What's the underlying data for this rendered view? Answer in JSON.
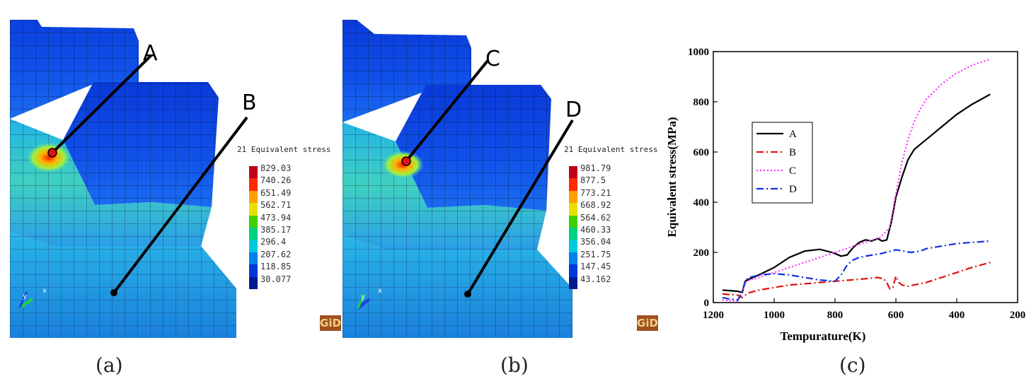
{
  "panels": [
    {
      "caption": "(a)",
      "point_labels": [
        "A",
        "B"
      ],
      "legend_title": "21 Equivalent stress",
      "scale": [
        "829.03",
        "740.26",
        "651.49",
        "562.71",
        "473.94",
        "385.17",
        "296.4",
        "207.62",
        "118.85",
        "30.077"
      ],
      "axis_labels": [
        "y",
        "x"
      ],
      "logo": "GiD"
    },
    {
      "caption": "(b)",
      "point_labels": [
        "C",
        "D"
      ],
      "legend_title": "21 Equivalent stress",
      "scale": [
        "981.79",
        "877.5",
        "773.21",
        "668.92",
        "564.62",
        "460.33",
        "356.04",
        "251.75",
        "147.45",
        "43.162"
      ],
      "axis_labels": [
        "y",
        "x"
      ],
      "logo": "GiD"
    }
  ],
  "colorbar": [
    "#c0001a",
    "#ff2a00",
    "#ffa000",
    "#e8e000",
    "#40d000",
    "#00d080",
    "#00c8e0",
    "#0080e8",
    "#0038d8",
    "#001a90"
  ],
  "chart_caption": "(c)",
  "chart_data": {
    "type": "line",
    "xlabel": "Tempurature(K)",
    "ylabel": "Equivalent stress(MPa)",
    "xlim": [
      1200,
      200
    ],
    "ylim": [
      0,
      1000
    ],
    "xticks": [
      1200,
      1000,
      800,
      600,
      400,
      200
    ],
    "yticks": [
      0,
      200,
      400,
      600,
      800,
      1000
    ],
    "legend_position": "left-middle",
    "series": [
      {
        "name": "A",
        "color": "#000000",
        "dash": "solid",
        "x": [
          1170,
          1150,
          1120,
          1105,
          1095,
          1080,
          1050,
          1000,
          950,
          900,
          850,
          810,
          780,
          760,
          740,
          720,
          700,
          680,
          660,
          645,
          630,
          615,
          600,
          580,
          560,
          540,
          520,
          500,
          450,
          400,
          350,
          290
        ],
        "y": [
          50,
          48,
          45,
          40,
          85,
          95,
          110,
          140,
          180,
          205,
          212,
          200,
          185,
          190,
          220,
          240,
          250,
          245,
          255,
          245,
          250,
          320,
          420,
          500,
          570,
          610,
          630,
          650,
          700,
          750,
          790,
          830
        ]
      },
      {
        "name": "B",
        "color": "#e01010",
        "dash": "dashdot",
        "x": [
          1170,
          1150,
          1120,
          1105,
          1095,
          1080,
          1050,
          1000,
          950,
          900,
          850,
          800,
          750,
          700,
          660,
          640,
          630,
          620,
          610,
          600,
          590,
          580,
          560,
          540,
          500,
          450,
          400,
          350,
          290
        ],
        "y": [
          35,
          32,
          30,
          20,
          30,
          40,
          50,
          60,
          70,
          75,
          80,
          85,
          90,
          95,
          100,
          95,
          80,
          55,
          60,
          105,
          80,
          70,
          65,
          70,
          80,
          100,
          120,
          140,
          160
        ]
      },
      {
        "name": "C",
        "color": "#ff30ff",
        "dash": "dotted",
        "x": [
          1170,
          1150,
          1120,
          1105,
          1095,
          1080,
          1050,
          1000,
          950,
          900,
          850,
          800,
          750,
          700,
          650,
          620,
          600,
          580,
          560,
          540,
          520,
          500,
          450,
          400,
          350,
          290
        ],
        "y": [
          10,
          8,
          5,
          40,
          80,
          90,
          100,
          120,
          140,
          160,
          180,
          200,
          220,
          240,
          260,
          300,
          430,
          560,
          650,
          720,
          770,
          810,
          870,
          915,
          945,
          970
        ]
      },
      {
        "name": "D",
        "color": "#1030e0",
        "dash": "dashdot",
        "x": [
          1170,
          1150,
          1120,
          1105,
          1095,
          1080,
          1050,
          1000,
          950,
          900,
          850,
          800,
          780,
          760,
          740,
          720,
          700,
          650,
          600,
          550,
          520,
          500,
          450,
          400,
          350,
          290
        ],
        "y": [
          20,
          15,
          10,
          40,
          90,
          100,
          110,
          115,
          110,
          100,
          90,
          85,
          110,
          150,
          170,
          180,
          185,
          195,
          210,
          200,
          205,
          215,
          225,
          235,
          240,
          245
        ]
      }
    ]
  }
}
